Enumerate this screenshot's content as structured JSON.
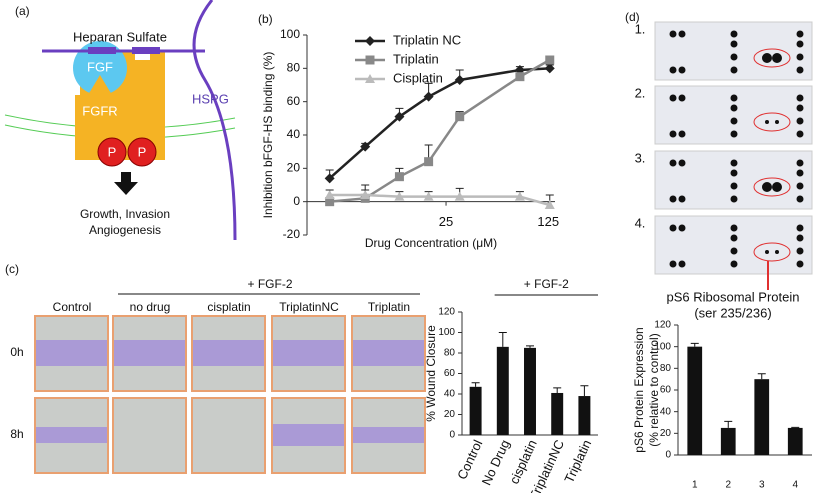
{
  "panel_labels": [
    "(a)",
    "(b)",
    "(c)",
    "(d)"
  ],
  "diagram": {
    "membrane_label": "Heparan Sulfate",
    "ligand": "FGF",
    "receptor": "FGFR",
    "proteoglycan": "HSPG",
    "phospho": [
      "P",
      "P"
    ],
    "outcome": [
      "Growth, Invasion",
      "Angiogenesis"
    ]
  },
  "panel_c": {
    "group_label": "+ FGF-2",
    "columns": [
      "Control",
      "no drug",
      "cisplatin",
      "TriplatinNC",
      "Triplatin"
    ],
    "rows": [
      "0h",
      "8h"
    ]
  },
  "panel_d": {
    "blots": [
      "1.",
      "2.",
      "3.",
      "4."
    ],
    "target": [
      "pS6 Ribosomal Protein",
      "(ser 235/236)"
    ]
  },
  "chart_data": [
    {
      "type": "line",
      "xlabel": "Drug Concentration (μM)",
      "ylabel": "Inhibition bFGF-HS binding (%)",
      "log_x": true,
      "x": [
        4,
        7,
        12,
        19,
        31,
        80,
        128
      ],
      "xlim": [
        2.8,
        139
      ],
      "xticks": [
        25,
        125
      ],
      "ylim": [
        -20,
        100
      ],
      "yticks": [
        -20,
        0,
        20,
        40,
        60,
        80,
        100
      ],
      "legend": "top-left",
      "series": [
        {
          "name": "Triplatin NC",
          "color": "#222222",
          "marker": "diamond",
          "values": [
            14,
            33,
            51,
            63,
            73,
            79,
            80
          ],
          "errors": [
            5,
            2,
            5,
            8,
            6,
            2,
            2
          ]
        },
        {
          "name": "Triplatin",
          "color": "#888888",
          "marker": "square",
          "values": [
            0,
            2,
            15,
            24,
            51,
            75,
            85
          ],
          "errors": [
            2,
            8,
            5,
            10,
            3,
            2,
            2
          ]
        },
        {
          "name": "Cisplatin",
          "color": "#bbbbbb",
          "marker": "triangle",
          "values": [
            4,
            4,
            3,
            3,
            3,
            3,
            -2
          ],
          "errors": [
            3,
            3,
            3,
            3,
            5,
            3,
            6
          ]
        }
      ]
    },
    {
      "type": "bar",
      "annotation": "+ FGF-2",
      "ylabel": "% Wound Closure",
      "categories": [
        "Control",
        "No Drug",
        "cisplatin",
        "TriplatinNC",
        "Triplatin"
      ],
      "values": [
        47,
        86,
        85,
        41,
        38
      ],
      "errors": [
        4,
        14,
        2,
        5,
        10
      ],
      "color": "#111111",
      "ylim": [
        0,
        120
      ],
      "yticks": [
        0,
        20,
        40,
        60,
        80,
        100,
        120
      ]
    },
    {
      "type": "bar",
      "ylabel": [
        "pS6 Protein Expression",
        "(% relative to control)"
      ],
      "categories": [
        "1",
        "2",
        "3",
        "4"
      ],
      "values": [
        100,
        25,
        70,
        25
      ],
      "errors": [
        3,
        6,
        5,
        0.5
      ],
      "color": "#111111",
      "ylim": [
        0,
        120
      ],
      "yticks": [
        0,
        20,
        40,
        60,
        80,
        100,
        120
      ]
    }
  ]
}
